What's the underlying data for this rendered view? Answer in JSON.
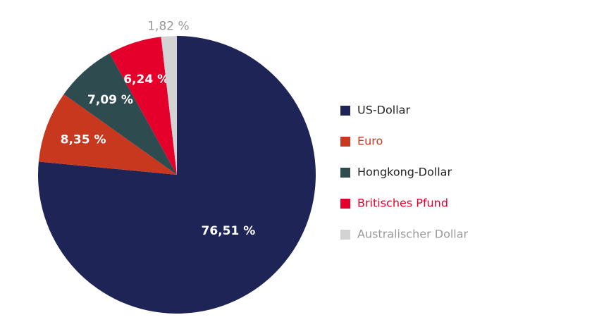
{
  "chart_data": {
    "type": "pie",
    "categories": [
      "US-Dollar",
      "Euro",
      "Hongkong-Dollar",
      "Britisches Pfund",
      "Australischer Dollar"
    ],
    "values": [
      76.51,
      8.35,
      7.09,
      6.24,
      1.82
    ],
    "value_labels": [
      "76,51 %",
      "8,35 %",
      "7,09 %",
      "6,24 %",
      "1,82 %"
    ],
    "colors": [
      "#1e2556",
      "#c8381e",
      "#2e4b50",
      "#e4002b",
      "#d3d3d3"
    ],
    "legend": "right"
  }
}
